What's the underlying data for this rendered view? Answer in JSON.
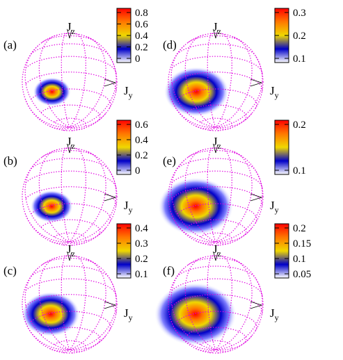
{
  "figure": {
    "axis_labels": {
      "jz_main": "J",
      "jz_sub": "z",
      "jy_main": "J",
      "jy_sub": "y"
    },
    "colormap": [
      "#ffffff",
      "#0000c8",
      "#f0d800",
      "#ff7800",
      "#ff0000"
    ],
    "wireframe_color": "#e000e0",
    "panels": [
      {
        "id": "a",
        "label": "(a)",
        "spot_size": 0.55,
        "colorbar_ticks": [
          "0.8",
          "0.6",
          "0.4",
          "0.2",
          "0"
        ]
      },
      {
        "id": "b",
        "label": "(b)",
        "spot_size": 0.62,
        "colorbar_ticks": [
          "0.6",
          "0.4",
          "0.2",
          "0"
        ]
      },
      {
        "id": "c",
        "label": "(c)",
        "spot_size": 0.85,
        "colorbar_ticks": [
          "0.4",
          "0.3",
          "0.2",
          "0.1"
        ]
      },
      {
        "id": "d",
        "label": "(d)",
        "spot_size": 0.95,
        "colorbar_ticks": [
          "0.3",
          "0.2",
          "0.1"
        ]
      },
      {
        "id": "e",
        "label": "(e)",
        "spot_size": 1.1,
        "colorbar_ticks": [
          "0.2",
          "0.1"
        ]
      },
      {
        "id": "f",
        "label": "(f)",
        "spot_size": 1.2,
        "colorbar_ticks": [
          "0.2",
          "0.15",
          "0.1",
          "0.05"
        ]
      }
    ]
  }
}
